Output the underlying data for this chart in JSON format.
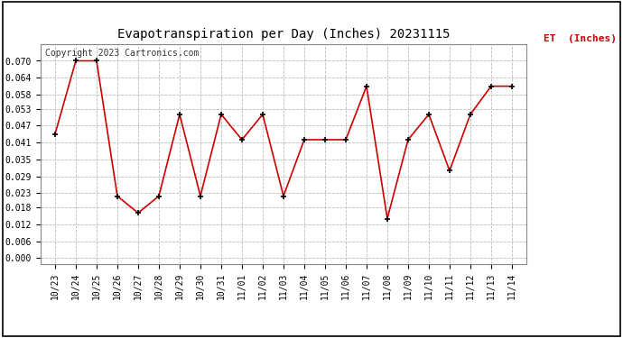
{
  "title": "Evapotranspiration per Day (Inches) 20231115",
  "copyright_text": "Copyright 2023 Cartronics.com",
  "legend_label": "ET  (Inches)",
  "x_labels": [
    "10/23",
    "10/24",
    "10/25",
    "10/26",
    "10/27",
    "10/28",
    "10/29",
    "10/30",
    "10/31",
    "11/01",
    "11/02",
    "11/03",
    "11/04",
    "11/05",
    "11/06",
    "11/07",
    "11/08",
    "11/09",
    "11/10",
    "11/11",
    "11/12",
    "11/13",
    "11/14"
  ],
  "y_values": [
    0.044,
    0.07,
    0.07,
    0.022,
    0.016,
    0.022,
    0.051,
    0.022,
    0.051,
    0.042,
    0.051,
    0.022,
    0.042,
    0.042,
    0.042,
    0.061,
    0.014,
    0.042,
    0.051,
    0.031,
    0.051,
    0.061,
    0.061
  ],
  "ylim": [
    -0.002,
    0.076
  ],
  "yticks": [
    0.0,
    0.006,
    0.012,
    0.018,
    0.023,
    0.029,
    0.035,
    0.041,
    0.047,
    0.053,
    0.058,
    0.064,
    0.07
  ],
  "line_color": "#cc0000",
  "marker": "+",
  "marker_color": "#000000",
  "marker_size": 5,
  "line_width": 1.2,
  "grid_color": "#bbbbbb",
  "grid_style": "--",
  "background_color": "#ffffff",
  "legend_color": "#cc0000",
  "title_fontsize": 10,
  "tick_fontsize": 7,
  "copyright_fontsize": 7,
  "legend_fontsize": 8,
  "border_color": "#000000"
}
